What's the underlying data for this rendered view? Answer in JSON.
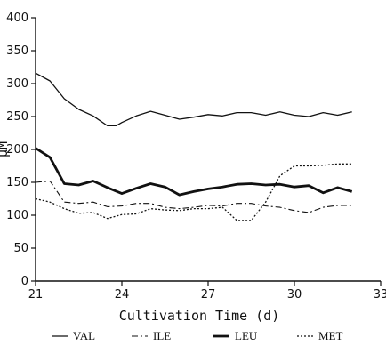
{
  "chart_data": {
    "type": "line",
    "title": "",
    "xlabel": "Cultivation Time (d)",
    "ylabel": "μM",
    "xlim": [
      21,
      33
    ],
    "ylim": [
      0,
      400
    ],
    "xticks": [
      21,
      24,
      27,
      30,
      33
    ],
    "yticks": [
      0,
      50,
      100,
      150,
      200,
      250,
      300,
      350,
      400
    ],
    "legend_position": "bottom",
    "grid": false,
    "series": [
      {
        "name": "VAL",
        "style": "solid-thin",
        "x": [
          21,
          21.5,
          22,
          22.5,
          23,
          23.5,
          23.8,
          24,
          24.5,
          25,
          25.5,
          26,
          26.5,
          27,
          27.5,
          28,
          28.5,
          29,
          29.5,
          30,
          30.5,
          31,
          31.5,
          32
        ],
        "y": [
          316,
          304,
          277,
          261,
          251,
          236,
          236,
          241,
          251,
          258,
          252,
          246,
          249,
          253,
          251,
          256,
          256,
          252,
          257,
          252,
          250,
          256,
          252,
          257
        ]
      },
      {
        "name": "ILE",
        "style": "dash-dot",
        "x": [
          21,
          21.5,
          22,
          22.5,
          23,
          23.5,
          24,
          24.5,
          25,
          25.5,
          26,
          26.5,
          27,
          27.5,
          28,
          28.5,
          29,
          29.5,
          30,
          30.5,
          31,
          31.5,
          32
        ],
        "y": [
          150,
          152,
          120,
          118,
          120,
          113,
          114,
          118,
          118,
          112,
          110,
          112,
          115,
          114,
          118,
          118,
          114,
          112,
          107,
          104,
          112,
          115,
          115
        ]
      },
      {
        "name": "LEU",
        "style": "solid-thick",
        "x": [
          21,
          21.5,
          22,
          22.5,
          23,
          23.5,
          24,
          24.5,
          25,
          25.5,
          26,
          26.5,
          27,
          27.5,
          28,
          28.5,
          29,
          29.5,
          30,
          30.5,
          31,
          31.5,
          32
        ],
        "y": [
          202,
          188,
          148,
          146,
          152,
          142,
          133,
          141,
          148,
          143,
          131,
          136,
          140,
          143,
          147,
          148,
          146,
          147,
          143,
          145,
          134,
          142,
          136
        ]
      },
      {
        "name": "MET",
        "style": "dotted",
        "x": [
          21,
          21.5,
          22,
          22.5,
          23,
          23.5,
          24,
          24.5,
          25,
          25.5,
          26,
          26.5,
          27,
          27.5,
          28,
          28.5,
          29,
          29.5,
          30,
          30.5,
          31,
          31.5,
          32
        ],
        "y": [
          125,
          120,
          110,
          103,
          104,
          95,
          101,
          102,
          110,
          108,
          107,
          110,
          110,
          112,
          92,
          92,
          120,
          160,
          175,
          175,
          176,
          178,
          178
        ]
      }
    ]
  }
}
